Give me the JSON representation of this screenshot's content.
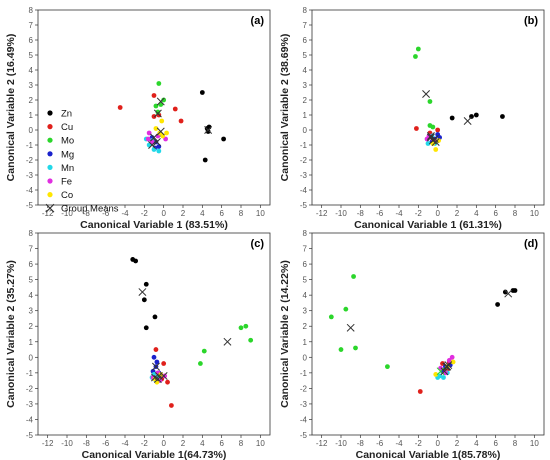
{
  "colors": {
    "Zn": "#000000",
    "Cu": "#e0201b",
    "Mo": "#2bd62b",
    "Mg": "#1a22cc",
    "Mn": "#22d8e8",
    "Fe": "#e02ee0",
    "Co": "#ffe600",
    "Group Means": "#333333",
    "Group Means (d)": "#2bd62b"
  },
  "legend": {
    "placement": "left",
    "items": [
      "Zn",
      "Cu",
      "Mo",
      "Mg",
      "Mn",
      "Fe",
      "Co",
      "Group Means"
    ]
  },
  "chart_data": [
    {
      "panel": "(a)",
      "type": "scatter",
      "xlabel": "Canonical Variable 1 (83.51%)",
      "ylabel": "Canonical Variable 2 (16.49%)",
      "xlim": [
        -13,
        11
      ],
      "ylim": [
        -5,
        8
      ],
      "xticks": [
        -12,
        -10,
        -8,
        -6,
        -4,
        -2,
        0,
        2,
        4,
        6,
        8,
        10
      ],
      "yticks": [
        -5,
        -4,
        -3,
        -2,
        -1,
        0,
        1,
        2,
        3,
        4,
        5,
        6,
        7,
        8
      ],
      "series": [
        {
          "name": "Zn",
          "points": [
            [
              4.0,
              2.5
            ],
            [
              4.5,
              0.1
            ],
            [
              4.7,
              0.2
            ],
            [
              6.2,
              -0.6
            ],
            [
              4.3,
              -2.0
            ],
            [
              4.6,
              -0.1
            ]
          ]
        },
        {
          "name": "Cu",
          "points": [
            [
              -4.5,
              1.5
            ],
            [
              -1.0,
              2.3
            ],
            [
              1.2,
              1.4
            ],
            [
              1.8,
              0.6
            ],
            [
              -1.0,
              0.9
            ],
            [
              -0.5,
              1.0
            ]
          ]
        },
        {
          "name": "Mo",
          "points": [
            [
              -0.5,
              3.1
            ],
            [
              0.0,
              2.0
            ],
            [
              -0.8,
              1.6
            ],
            [
              -0.3,
              1.7
            ],
            [
              -0.6,
              1.2
            ]
          ]
        },
        {
          "name": "Mg",
          "points": [
            [
              -0.8,
              -0.8
            ],
            [
              -0.5,
              -1.1
            ],
            [
              -1.2,
              -0.5
            ],
            [
              -0.3,
              -0.3
            ],
            [
              -0.9,
              -1.2
            ]
          ]
        },
        {
          "name": "Mn",
          "points": [
            [
              -1.5,
              -1.0
            ],
            [
              -1.0,
              -1.3
            ],
            [
              -0.5,
              -1.4
            ],
            [
              -1.8,
              -0.6
            ],
            [
              -1.2,
              -0.7
            ]
          ]
        },
        {
          "name": "Fe",
          "points": [
            [
              -1.5,
              -0.2
            ],
            [
              -1.2,
              -0.8
            ],
            [
              -0.6,
              -0.4
            ],
            [
              -1.6,
              -0.6
            ],
            [
              0.2,
              -0.6
            ]
          ]
        },
        {
          "name": "Co",
          "points": [
            [
              -0.2,
              0.6
            ],
            [
              0.3,
              -0.2
            ],
            [
              -0.4,
              -0.2
            ],
            [
              -0.8,
              0.1
            ],
            [
              -0.1,
              -0.4
            ]
          ]
        }
      ],
      "group_means": [
        [
          4.6,
          0.0
        ],
        [
          -0.6,
          1.1
        ],
        [
          -0.3,
          1.9
        ],
        [
          -0.7,
          -0.8
        ],
        [
          -1.2,
          -1.0
        ],
        [
          -1.0,
          -0.5
        ],
        [
          -0.3,
          -0.1
        ]
      ]
    },
    {
      "panel": "(b)",
      "type": "scatter",
      "xlabel": "Canonical Variable 1 (61.31%)",
      "ylabel": "Canonical Variable 2 (38.69%)",
      "xlim": [
        -13,
        11
      ],
      "ylim": [
        -5,
        8
      ],
      "xticks": [
        -12,
        -10,
        -8,
        -6,
        -4,
        -2,
        0,
        2,
        4,
        6,
        8,
        10
      ],
      "yticks": [
        -5,
        -4,
        -3,
        -2,
        -1,
        0,
        1,
        2,
        3,
        4,
        5,
        6,
        7,
        8
      ],
      "series": [
        {
          "name": "Zn",
          "points": [
            [
              1.5,
              0.8
            ],
            [
              3.5,
              0.9
            ],
            [
              4.0,
              1.0
            ],
            [
              6.7,
              0.9
            ]
          ]
        },
        {
          "name": "Cu",
          "points": [
            [
              -2.2,
              0.1
            ],
            [
              -0.8,
              -0.2
            ],
            [
              0.0,
              0.0
            ],
            [
              -0.5,
              -0.6
            ]
          ]
        },
        {
          "name": "Mo",
          "points": [
            [
              -2.0,
              5.4
            ],
            [
              -2.3,
              4.9
            ],
            [
              -0.8,
              1.9
            ],
            [
              -0.8,
              0.3
            ],
            [
              -0.5,
              0.2
            ]
          ]
        },
        {
          "name": "Mg",
          "points": [
            [
              -0.3,
              -0.6
            ],
            [
              0.0,
              -0.3
            ],
            [
              -0.6,
              -0.8
            ],
            [
              0.2,
              -0.5
            ]
          ]
        },
        {
          "name": "Mn",
          "points": [
            [
              -1.0,
              -0.9
            ],
            [
              -0.6,
              -0.4
            ],
            [
              -0.3,
              -0.9
            ]
          ]
        },
        {
          "name": "Fe",
          "points": [
            [
              -0.9,
              -0.4
            ],
            [
              -1.1,
              -0.6
            ],
            [
              -0.4,
              -0.7
            ]
          ]
        },
        {
          "name": "Co",
          "points": [
            [
              -0.2,
              -1.3
            ],
            [
              0.1,
              -0.7
            ],
            [
              -0.5,
              -0.9
            ]
          ]
        }
      ],
      "group_means": [
        [
          3.1,
          0.6
        ],
        [
          -1.2,
          2.4
        ],
        [
          -0.7,
          -0.4
        ],
        [
          -0.3,
          -0.6
        ],
        [
          -0.5,
          -0.7
        ],
        [
          -0.7,
          -0.5
        ],
        [
          -0.2,
          -0.8
        ]
      ]
    },
    {
      "panel": "(c)",
      "type": "scatter",
      "xlabel": "Canonical Variable 1(64.73%)",
      "ylabel": "Canonical Variable 2 (35.27%)",
      "xlim": [
        -13,
        11
      ],
      "ylim": [
        -5,
        8
      ],
      "xticks": [
        -12,
        -10,
        -8,
        -6,
        -4,
        -2,
        0,
        2,
        4,
        6,
        8,
        10
      ],
      "yticks": [
        -5,
        -4,
        -3,
        -2,
        -1,
        0,
        1,
        2,
        3,
        4,
        5,
        6,
        7,
        8
      ],
      "series": [
        {
          "name": "Zn",
          "points": [
            [
              -3.2,
              6.3
            ],
            [
              -2.9,
              6.2
            ],
            [
              -1.8,
              4.7
            ],
            [
              -2.0,
              3.7
            ],
            [
              -0.9,
              2.6
            ],
            [
              -1.8,
              1.9
            ]
          ]
        },
        {
          "name": "Cu",
          "points": [
            [
              -0.8,
              0.5
            ],
            [
              0.0,
              -0.4
            ],
            [
              -0.2,
              -1.4
            ],
            [
              0.4,
              -1.6
            ],
            [
              0.8,
              -3.1
            ]
          ]
        },
        {
          "name": "Mo",
          "points": [
            [
              3.8,
              -0.4
            ],
            [
              4.2,
              0.4
            ],
            [
              8.0,
              1.9
            ],
            [
              8.5,
              2.0
            ],
            [
              9.0,
              1.1
            ]
          ]
        },
        {
          "name": "Mg",
          "points": [
            [
              -1.0,
              0.0
            ],
            [
              -0.8,
              -0.6
            ],
            [
              -0.5,
              -1.0
            ],
            [
              -1.1,
              -0.9
            ],
            [
              -0.7,
              -0.3
            ]
          ]
        },
        {
          "name": "Mn",
          "points": [
            [
              -1.2,
              -1.3
            ],
            [
              -0.8,
              -1.5
            ],
            [
              -0.5,
              -1.2
            ],
            [
              -1.0,
              -1.1
            ]
          ]
        },
        {
          "name": "Fe",
          "points": [
            [
              -0.6,
              -1.0
            ],
            [
              -1.1,
              -1.3
            ],
            [
              -0.4,
              -1.5
            ],
            [
              0.1,
              -1.2
            ]
          ]
        },
        {
          "name": "Co",
          "points": [
            [
              -0.7,
              -1.6
            ],
            [
              -0.9,
              -1.4
            ],
            [
              -0.3,
              -1.1
            ]
          ]
        }
      ],
      "group_means": [
        [
          -2.2,
          4.2
        ],
        [
          0.0,
          -1.2
        ],
        [
          6.6,
          1.0
        ],
        [
          -0.8,
          -0.6
        ],
        [
          -0.9,
          -1.3
        ],
        [
          -0.5,
          -1.2
        ],
        [
          -0.6,
          -1.4
        ]
      ]
    },
    {
      "panel": "(d)",
      "type": "scatter",
      "xlabel": "Canonical Variable 1(85.78%)",
      "ylabel": "Canonical Variable 2 (14.22%)",
      "xlim": [
        -13,
        11
      ],
      "ylim": [
        -5,
        8
      ],
      "xticks": [
        -12,
        -10,
        -8,
        -6,
        -4,
        -2,
        0,
        2,
        4,
        6,
        8,
        10
      ],
      "yticks": [
        -5,
        -4,
        -3,
        -2,
        -1,
        0,
        1,
        2,
        3,
        4,
        5,
        6,
        7,
        8
      ],
      "series": [
        {
          "name": "Zn",
          "points": [
            [
              6.2,
              3.4
            ],
            [
              7.0,
              4.2
            ],
            [
              7.8,
              4.3
            ],
            [
              8.0,
              4.3
            ]
          ]
        },
        {
          "name": "Cu",
          "points": [
            [
              -1.8,
              -2.2
            ],
            [
              0.5,
              -0.4
            ],
            [
              1.2,
              -0.3
            ],
            [
              1.0,
              -0.8
            ]
          ]
        },
        {
          "name": "Mo",
          "points": [
            [
              -11.0,
              2.6
            ],
            [
              -9.5,
              3.1
            ],
            [
              -8.7,
              5.2
            ],
            [
              -10.0,
              0.5
            ],
            [
              -8.5,
              0.6
            ],
            [
              -5.2,
              -0.6
            ]
          ]
        },
        {
          "name": "Mg",
          "points": [
            [
              0.8,
              -0.6
            ],
            [
              1.3,
              -0.5
            ],
            [
              0.5,
              -0.9
            ]
          ]
        },
        {
          "name": "Mn",
          "points": [
            [
              0.2,
              -1.2
            ],
            [
              0.6,
              -1.3
            ],
            [
              1.0,
              -1.0
            ],
            [
              0.0,
              -1.3
            ]
          ]
        },
        {
          "name": "Fe",
          "points": [
            [
              1.2,
              -0.2
            ],
            [
              1.5,
              0.0
            ],
            [
              0.8,
              -1.0
            ],
            [
              0.3,
              -0.7
            ]
          ]
        },
        {
          "name": "Co",
          "points": [
            [
              1.0,
              -0.6
            ],
            [
              1.6,
              -0.3
            ],
            [
              -0.2,
              -1.1
            ]
          ]
        }
      ],
      "group_means": [
        [
          7.3,
          4.1
        ],
        [
          -9.0,
          1.9
        ],
        [
          0.3,
          -0.9
        ],
        [
          1.0,
          -0.6
        ],
        [
          0.7,
          -0.9
        ],
        [
          1.1,
          -0.5
        ],
        [
          0.9,
          -0.6
        ]
      ]
    }
  ]
}
